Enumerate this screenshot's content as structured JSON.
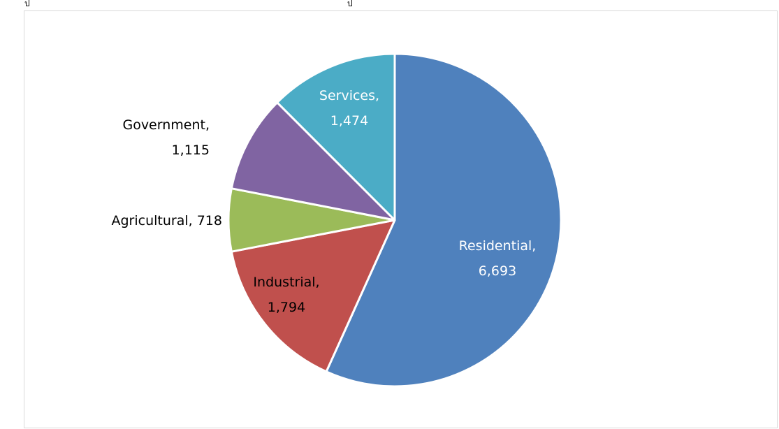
{
  "chart_data": {
    "type": "pie",
    "title": "",
    "slices": [
      {
        "category": "Residential",
        "value": 6693,
        "value_label": "6,693",
        "color": "#4F81BD",
        "label_color": "#ffffff"
      },
      {
        "category": "Industrial",
        "value": 1794,
        "value_label": "1,794",
        "color": "#C0504D",
        "label_color": "#000000"
      },
      {
        "category": "Agricultural",
        "value": 718,
        "value_label": "718",
        "color": "#9BBB59",
        "label_color": "#000000"
      },
      {
        "category": "Government",
        "value": 1115,
        "value_label": "1,115",
        "color": "#8064A2",
        "label_color": "#000000"
      },
      {
        "category": "Services",
        "value": 1474,
        "value_label": "1,474",
        "color": "#4BACC6",
        "label_color": "#ffffff"
      }
    ],
    "start_angle": "12 o'clock",
    "direction": "clockwise",
    "legend": "none"
  }
}
